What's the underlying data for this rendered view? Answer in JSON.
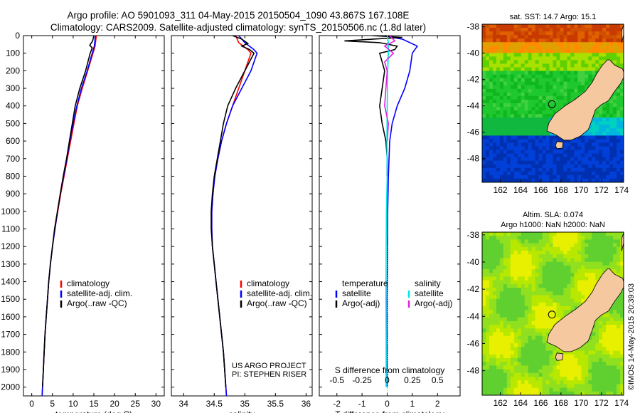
{
  "header": {
    "line1": "Argo profile: AO 5901093_311 04-May-2015 20150504_1090 43.867S 167.108E",
    "line2": "Climatology: CARS2009. Satellite-adjusted climatology: synTS_20150506.nc (1.8d later)"
  },
  "credit_text": "©IMOS 14-May-2015 20:39:03",
  "project_note": {
    "line1": "US ARGO PROJECT",
    "line2": "PI: STEPHEN RISER"
  },
  "colors": {
    "climatology": "#ff0000",
    "satellite": "#0000ff",
    "argo": "#000000",
    "salinity_satellite": "#00e5e5",
    "salinity_argo": "#e020e0",
    "land": "#f5c8a0"
  },
  "chart_data": [
    {
      "id": "temperature",
      "type": "line",
      "xlabel": "temperature (deg C)",
      "ylabel": "",
      "xlim": [
        -2,
        32
      ],
      "ylim": [
        2050,
        0
      ],
      "x_ticks": [
        0,
        5,
        10,
        15,
        20,
        25,
        30
      ],
      "y_ticks": [
        0,
        100,
        200,
        300,
        400,
        500,
        600,
        700,
        800,
        900,
        1000,
        1100,
        1200,
        1300,
        1400,
        1500,
        1600,
        1700,
        1800,
        1900,
        2000
      ],
      "legend": [
        "climatology",
        "satellite-adj. clim.",
        "Argo(..raw -QC)"
      ],
      "series": [
        {
          "name": "climatology",
          "color": "#ff0000",
          "points": [
            [
              15.6,
              0
            ],
            [
              15.3,
              60
            ],
            [
              14.8,
              100
            ],
            [
              13.5,
              200
            ],
            [
              12.2,
              300
            ],
            [
              11.0,
              400
            ],
            [
              10.2,
              500
            ],
            [
              9.4,
              600
            ],
            [
              8.6,
              700
            ],
            [
              7.8,
              800
            ],
            [
              7.0,
              900
            ],
            [
              6.3,
              1000
            ],
            [
              5.6,
              1100
            ],
            [
              5.0,
              1200
            ],
            [
              4.5,
              1300
            ],
            [
              4.1,
              1400
            ],
            [
              3.8,
              1500
            ],
            [
              3.5,
              1600
            ],
            [
              3.2,
              1700
            ],
            [
              3.0,
              1800
            ],
            [
              2.8,
              1900
            ],
            [
              2.6,
              2000
            ],
            [
              2.5,
              2050
            ]
          ]
        },
        {
          "name": "satellite-adj. clim.",
          "color": "#0000ff",
          "points": [
            [
              15.4,
              0
            ],
            [
              15.1,
              60
            ],
            [
              14.6,
              100
            ],
            [
              13.4,
              200
            ],
            [
              12.0,
              300
            ],
            [
              10.9,
              400
            ],
            [
              10.0,
              500
            ],
            [
              9.2,
              600
            ],
            [
              8.5,
              700
            ],
            [
              7.7,
              800
            ],
            [
              6.9,
              900
            ],
            [
              6.2,
              1000
            ],
            [
              5.6,
              1100
            ],
            [
              5.0,
              1200
            ],
            [
              4.5,
              1300
            ],
            [
              4.1,
              1400
            ],
            [
              3.8,
              1500
            ],
            [
              3.5,
              1600
            ],
            [
              3.2,
              1700
            ],
            [
              3.0,
              1800
            ],
            [
              2.8,
              1900
            ],
            [
              2.6,
              2000
            ],
            [
              2.5,
              2050
            ]
          ]
        },
        {
          "name": "Argo(..raw -QC)",
          "color": "#000000",
          "points": [
            [
              15.0,
              0
            ],
            [
              14.7,
              30
            ],
            [
              14.0,
              55
            ],
            [
              14.6,
              70
            ],
            [
              14.1,
              100
            ],
            [
              13.0,
              200
            ],
            [
              11.6,
              300
            ],
            [
              10.5,
              400
            ],
            [
              9.8,
              500
            ],
            [
              9.1,
              600
            ],
            [
              8.4,
              700
            ],
            [
              7.6,
              800
            ],
            [
              6.9,
              900
            ],
            [
              6.2,
              1000
            ],
            [
              5.5,
              1100
            ],
            [
              5.0,
              1200
            ],
            [
              4.5,
              1300
            ],
            [
              4.1,
              1400
            ],
            [
              3.8,
              1500
            ],
            [
              3.5,
              1600
            ],
            [
              3.2,
              1700
            ],
            [
              3.0,
              1800
            ],
            [
              2.8,
              1900
            ],
            [
              2.6,
              2000
            ]
          ]
        }
      ]
    },
    {
      "id": "salinity",
      "type": "line",
      "xlabel": "salinity",
      "ylabel": "",
      "xlim": [
        33.8,
        36.1
      ],
      "ylim": [
        2050,
        0
      ],
      "x_ticks": [
        34,
        34.5,
        35,
        35.5,
        36
      ],
      "legend": [
        "climatology",
        "satellite-adj. clim.",
        "Argo(..raw -QC)"
      ],
      "series": [
        {
          "name": "climatology",
          "color": "#ff0000",
          "points": [
            [
              34.85,
              0
            ],
            [
              34.9,
              40
            ],
            [
              35.05,
              80
            ],
            [
              35.1,
              100
            ],
            [
              35.0,
              200
            ],
            [
              34.9,
              300
            ],
            [
              34.8,
              400
            ],
            [
              34.7,
              500
            ],
            [
              34.62,
              600
            ],
            [
              34.56,
              700
            ],
            [
              34.51,
              800
            ],
            [
              34.48,
              900
            ],
            [
              34.46,
              1000
            ],
            [
              34.46,
              1100
            ],
            [
              34.47,
              1200
            ],
            [
              34.5,
              1300
            ],
            [
              34.53,
              1400
            ],
            [
              34.56,
              1500
            ],
            [
              34.59,
              1600
            ],
            [
              34.62,
              1700
            ],
            [
              34.65,
              1800
            ],
            [
              34.67,
              1900
            ],
            [
              34.69,
              2000
            ],
            [
              34.7,
              2050
            ]
          ]
        },
        {
          "name": "satellite-adj. clim.",
          "color": "#0000ff",
          "points": [
            [
              34.9,
              0
            ],
            [
              35.0,
              40
            ],
            [
              35.15,
              80
            ],
            [
              35.2,
              100
            ],
            [
              35.1,
              200
            ],
            [
              34.95,
              300
            ],
            [
              34.8,
              400
            ],
            [
              34.7,
              500
            ],
            [
              34.62,
              600
            ],
            [
              34.56,
              700
            ],
            [
              34.51,
              800
            ],
            [
              34.48,
              900
            ],
            [
              34.46,
              1000
            ],
            [
              34.46,
              1100
            ],
            [
              34.47,
              1200
            ],
            [
              34.5,
              1300
            ],
            [
              34.53,
              1400
            ],
            [
              34.56,
              1500
            ],
            [
              34.59,
              1600
            ],
            [
              34.62,
              1700
            ],
            [
              34.65,
              1800
            ],
            [
              34.67,
              1900
            ],
            [
              34.69,
              2000
            ],
            [
              34.7,
              2050
            ]
          ]
        },
        {
          "name": "Argo(..raw -QC)",
          "color": "#000000",
          "points": [
            [
              34.8,
              0
            ],
            [
              34.95,
              20
            ],
            [
              35.05,
              45
            ],
            [
              34.95,
              60
            ],
            [
              35.08,
              80
            ],
            [
              35.15,
              100
            ],
            [
              35.0,
              200
            ],
            [
              34.85,
              300
            ],
            [
              34.72,
              400
            ],
            [
              34.65,
              500
            ],
            [
              34.6,
              600
            ],
            [
              34.55,
              700
            ],
            [
              34.5,
              800
            ],
            [
              34.47,
              900
            ],
            [
              34.45,
              1000
            ],
            [
              34.45,
              1100
            ],
            [
              34.47,
              1200
            ],
            [
              34.5,
              1300
            ],
            [
              34.53,
              1400
            ],
            [
              34.56,
              1500
            ],
            [
              34.59,
              1600
            ],
            [
              34.62,
              1700
            ],
            [
              34.65,
              1800
            ],
            [
              34.67,
              1900
            ],
            [
              34.69,
              2000
            ]
          ]
        }
      ]
    },
    {
      "id": "difference",
      "type": "line",
      "xlabel": "T difference from climatology",
      "top_label": "S difference from climatology",
      "xlim": [
        -2.7,
        2.9
      ],
      "ylim": [
        2050,
        0
      ],
      "x_ticks": [
        -2,
        -1,
        0,
        1,
        2
      ],
      "s_ticks": [
        -0.5,
        -0.25,
        0,
        0.25,
        0.5
      ],
      "legend_temperature": {
        "title": "temperature",
        "items": [
          "satellite",
          "Argo(-adj)"
        ]
      },
      "legend_salinity": {
        "title": "salinity",
        "items": [
          "satellite",
          "Argo(-adj)"
        ]
      },
      "series": [
        {
          "name": "temperature satellite",
          "color": "#0000ff",
          "points": [
            [
              -0.2,
              0
            ],
            [
              0.6,
              20
            ],
            [
              1.2,
              60
            ],
            [
              1.0,
              100
            ],
            [
              0.9,
              200
            ],
            [
              0.7,
              300
            ],
            [
              0.4,
              400
            ],
            [
              0.2,
              500
            ],
            [
              0.1,
              600
            ],
            [
              0.05,
              800
            ],
            [
              0.02,
              1000
            ],
            [
              0,
              1500
            ],
            [
              0,
              2000
            ]
          ]
        },
        {
          "name": "temperature Argo(-adj)",
          "color": "#000000",
          "points": [
            [
              -0.6,
              0
            ],
            [
              0.6,
              10
            ],
            [
              -1.7,
              30
            ],
            [
              -0.3,
              40
            ],
            [
              0.4,
              60
            ],
            [
              0.3,
              80
            ],
            [
              -0.3,
              100
            ],
            [
              -0.1,
              200
            ],
            [
              -0.2,
              300
            ],
            [
              -0.3,
              400
            ],
            [
              -0.2,
              500
            ],
            [
              -0.05,
              600
            ],
            [
              0,
              700
            ],
            [
              0,
              800
            ]
          ]
        },
        {
          "name": "salinity satellite",
          "color": "#00e5e5",
          "points": [
            [
              0,
              0
            ],
            [
              0.05,
              40
            ],
            [
              0.05,
              100
            ],
            [
              0.02,
              200
            ],
            [
              0,
              400
            ],
            [
              -0.01,
              600
            ],
            [
              0,
              800
            ],
            [
              -0.03,
              1000
            ],
            [
              -0.04,
              1200
            ],
            [
              -0.05,
              1500
            ],
            [
              -0.04,
              1800
            ],
            [
              -0.04,
              2000
            ]
          ]
        },
        {
          "name": "salinity Argo(-adj)",
          "color": "#e020e0",
          "points": [
            [
              0.1,
              0
            ],
            [
              0.3,
              30
            ],
            [
              -0.1,
              60
            ],
            [
              0.25,
              100
            ],
            [
              -0.1,
              150
            ],
            [
              0.0,
              200
            ],
            [
              -0.05,
              300
            ],
            [
              -0.1,
              400
            ],
            [
              0.05,
              500
            ],
            [
              0,
              600
            ]
          ]
        }
      ]
    },
    {
      "id": "sst-map",
      "type": "heatmap",
      "title": "sat. SST: 14.7 Argo: 15.1",
      "x_ticks": [
        162,
        164,
        166,
        168,
        170,
        172,
        174
      ],
      "y_ticks": [
        -38,
        -40,
        -42,
        -44,
        -46,
        -48
      ],
      "xlim": [
        160.2,
        174.2
      ],
      "ylim": [
        -49.8,
        -37.8
      ],
      "argo_position": {
        "lon": 167.108,
        "lat": -43.867
      }
    },
    {
      "id": "sla-map",
      "type": "heatmap",
      "title_line1": "Altim. SLA: 0.074",
      "title_line2": "Argo h1000: NaN h2000: NaN",
      "x_ticks": [
        162,
        164,
        166,
        168,
        170,
        172,
        174
      ],
      "y_ticks": [
        -38,
        -40,
        -42,
        -44,
        -46,
        -48
      ],
      "xlim": [
        160.2,
        174.2
      ],
      "ylim": [
        -49.8,
        -37.8
      ],
      "argo_position": {
        "lon": 167.108,
        "lat": -43.867
      }
    }
  ]
}
